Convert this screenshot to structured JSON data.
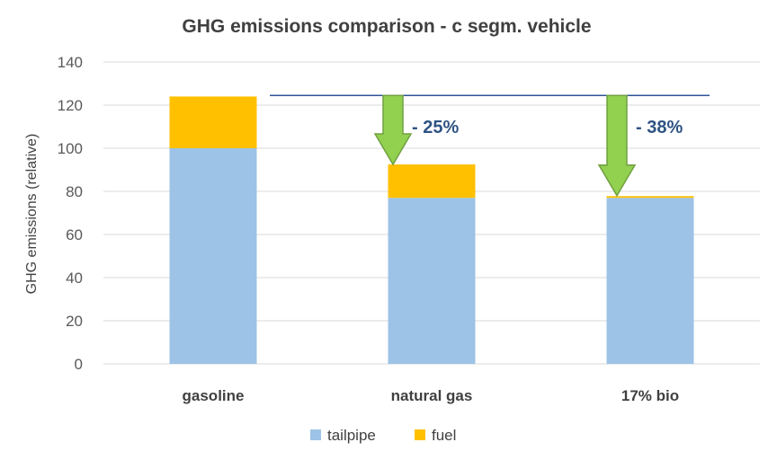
{
  "chart_data": {
    "type": "bar",
    "stacked": true,
    "title": "GHG emissions comparison - c segm. vehicle",
    "xlabel": "",
    "ylabel": "GHG emissions (relative)",
    "ylim": [
      0,
      140
    ],
    "yticks": [
      0,
      20,
      40,
      60,
      80,
      100,
      120,
      140
    ],
    "grid": true,
    "legend_position": "bottom",
    "categories": [
      "gasoline",
      "natural gas",
      "17% bio"
    ],
    "series": [
      {
        "name": "tailpipe",
        "values": [
          100,
          77,
          77
        ],
        "color": "#9dc3e6"
      },
      {
        "name": "fuel",
        "values": [
          24,
          15.5,
          0.8
        ],
        "color": "#ffc000"
      }
    ],
    "reference_line": {
      "value": 124.5,
      "color": "#2f5597"
    },
    "annotations": [
      {
        "category": "natural gas",
        "label": "- 25%",
        "from": 124.5,
        "to": 92.5,
        "text_color": "#2e5383",
        "arrow_color": "#92d050"
      },
      {
        "category": "17% bio",
        "label": "- 38%",
        "from": 124.5,
        "to": 78,
        "text_color": "#2e5383",
        "arrow_color": "#92d050"
      }
    ]
  }
}
